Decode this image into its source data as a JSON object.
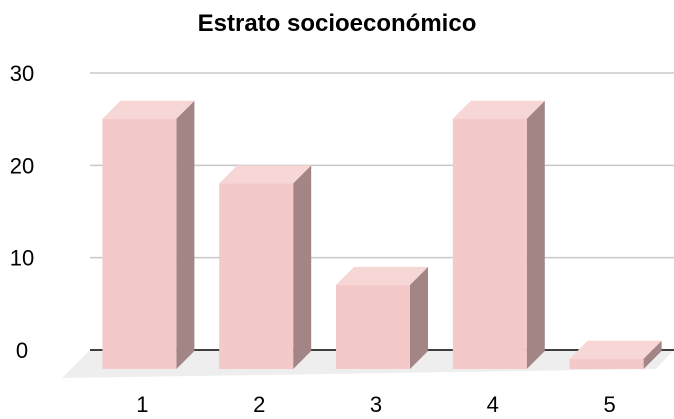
{
  "chart_data": {
    "type": "bar",
    "title": "Estrato socioeconómico",
    "xlabel": "",
    "ylabel": "",
    "categories": [
      "1",
      "2",
      "3",
      "4",
      "5"
    ],
    "values": [
      27,
      20,
      9,
      27,
      1
    ],
    "ylim": [
      0,
      30
    ],
    "yticks": [
      "0",
      "10",
      "20",
      "30"
    ],
    "grid": true,
    "legend": "none",
    "style": "3d-column"
  },
  "colors": {
    "bar_front": "#f4c9c9",
    "bar_top": "#f7d6d6",
    "bar_side": "#a38585",
    "floor": "#eeeeee",
    "gridline": "#c8c8c8",
    "axis": "#000000"
  }
}
